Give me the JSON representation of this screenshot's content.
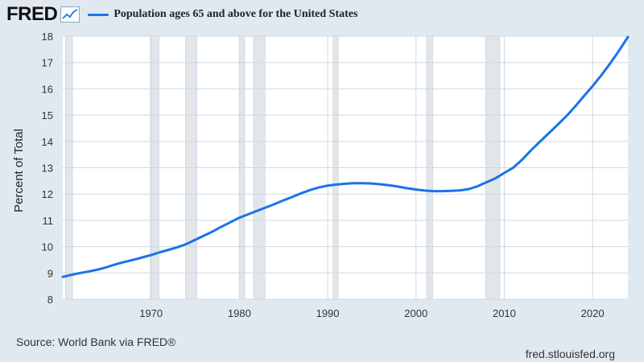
{
  "header": {
    "logo_text": "FRED",
    "logo_icon": "line-graph-icon",
    "series_legend": "Population ages 65 and above for the United States"
  },
  "footer": {
    "source": "Source: World Bank via FRED®",
    "site": "fred.stlouisfed.org"
  },
  "colors": {
    "line": "#1a73e8",
    "background": "#e1e9f0",
    "plot_bg": "#ffffff",
    "recession": "#e1e6ea"
  },
  "chart_data": {
    "type": "line",
    "title": "Population ages 65 and above for the United States",
    "xlabel": "",
    "ylabel": "Percent of Total",
    "xlim": [
      1960,
      2024
    ],
    "ylim": [
      8,
      18
    ],
    "xticks": [
      1970,
      1980,
      1990,
      2000,
      2010,
      2020
    ],
    "yticks": [
      8,
      9,
      10,
      11,
      12,
      13,
      14,
      15,
      16,
      17,
      18
    ],
    "grid": true,
    "recessions": [
      [
        1960.3,
        1961.1
      ],
      [
        1969.9,
        1970.9
      ],
      [
        1973.9,
        1975.2
      ],
      [
        1980.0,
        1980.6
      ],
      [
        1981.6,
        1982.9
      ],
      [
        1990.6,
        1991.2
      ],
      [
        2001.2,
        2001.9
      ],
      [
        2007.9,
        2009.5
      ]
    ],
    "series": [
      {
        "name": "Population ages 65 and above for the United States",
        "x": [
          1960,
          1961,
          1962,
          1963,
          1964,
          1965,
          1966,
          1967,
          1968,
          1969,
          1970,
          1971,
          1972,
          1973,
          1974,
          1975,
          1976,
          1977,
          1978,
          1979,
          1980,
          1981,
          1982,
          1983,
          1984,
          1985,
          1986,
          1987,
          1988,
          1989,
          1990,
          1991,
          1992,
          1993,
          1994,
          1995,
          1996,
          1997,
          1998,
          1999,
          2000,
          2001,
          2002,
          2003,
          2004,
          2005,
          2006,
          2007,
          2008,
          2009,
          2010,
          2011,
          2012,
          2013,
          2014,
          2015,
          2016,
          2017,
          2018,
          2019,
          2020,
          2021,
          2022,
          2023,
          2024
        ],
        "values": [
          8.85,
          8.93,
          9.0,
          9.06,
          9.13,
          9.22,
          9.33,
          9.42,
          9.5,
          9.59,
          9.68,
          9.79,
          9.88,
          9.98,
          10.1,
          10.26,
          10.42,
          10.58,
          10.76,
          10.93,
          11.1,
          11.23,
          11.36,
          11.49,
          11.62,
          11.76,
          11.89,
          12.03,
          12.15,
          12.25,
          12.32,
          12.36,
          12.39,
          12.41,
          12.41,
          12.4,
          12.37,
          12.33,
          12.28,
          12.22,
          12.17,
          12.13,
          12.11,
          12.11,
          12.12,
          12.14,
          12.19,
          12.3,
          12.45,
          12.6,
          12.8,
          13.0,
          13.3,
          13.65,
          13.98,
          14.3,
          14.62,
          14.95,
          15.32,
          15.72,
          16.1,
          16.52,
          16.97,
          17.45,
          17.97
        ]
      }
    ]
  }
}
